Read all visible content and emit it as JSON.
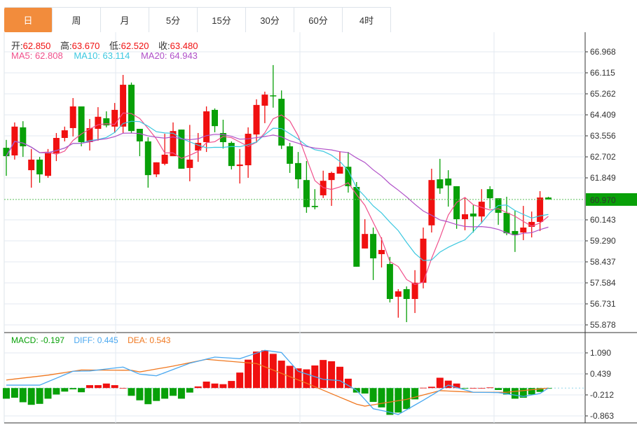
{
  "tabs": [
    {
      "label": "日",
      "active": true
    },
    {
      "label": "周"
    },
    {
      "label": "月"
    },
    {
      "label": "5分"
    },
    {
      "label": "15分"
    },
    {
      "label": "30分"
    },
    {
      "label": "60分"
    },
    {
      "label": "4时"
    }
  ],
  "ohlc": {
    "open_label": "开:",
    "open": "62.850",
    "high_label": "高:",
    "high": "63.670",
    "low_label": "低:",
    "low": "62.520",
    "close_label": "收:",
    "close": "63.480"
  },
  "ma": {
    "ma5": "MA5: 62.808",
    "ma10": "MA10: 63.114",
    "ma20": "MA20: 64.943"
  },
  "macd": {
    "macd": "MACD: -0.197",
    "diff": "DIFF: 0.445",
    "dea": "DEA: 0.543"
  },
  "colors": {
    "up": "#f01010",
    "down": "#08a008",
    "ma5": "#f0508c",
    "ma10": "#3cc8e0",
    "ma20": "#b050c8",
    "diff": "#4aa8f0",
    "dea": "#f07820",
    "accent": "#f28c3c"
  },
  "chart_data": {
    "type": "candlestick",
    "price_ticks": [
      "66.968",
      "66.115",
      "65.262",
      "64.409",
      "63.556",
      "62.702",
      "61.849",
      "60.970",
      "60.143",
      "59.290",
      "58.437",
      "57.584",
      "56.731",
      "55.878"
    ],
    "price_range": [
      55.878,
      66.968
    ],
    "last_price": "60.970",
    "macd_ticks": [
      "1.090",
      "0.439",
      "-0.212",
      "-0.863"
    ],
    "macd_range": [
      -0.863,
      1.09
    ],
    "candles": [
      [
        63.07,
        62.73,
        63.39,
        61.93
      ],
      [
        62.76,
        63.93,
        64.1,
        62.59
      ],
      [
        63.9,
        63.13,
        64.15,
        62.7
      ],
      [
        62.16,
        62.59,
        63.02,
        61.45
      ],
      [
        62.59,
        61.99,
        62.7,
        61.65
      ],
      [
        61.93,
        62.85,
        63.02,
        61.85
      ],
      [
        62.85,
        63.47,
        63.67,
        62.53
      ],
      [
        63.47,
        63.78,
        63.93,
        63.33
      ],
      [
        63.87,
        64.75,
        65.09,
        63.53
      ],
      [
        64.75,
        63.3,
        64.75,
        63.13
      ],
      [
        63.3,
        63.87,
        64.24,
        62.96
      ],
      [
        63.84,
        64.33,
        64.72,
        63.36
      ],
      [
        64.27,
        63.98,
        64.55,
        63.9
      ],
      [
        63.93,
        64.61,
        64.89,
        63.67
      ],
      [
        63.93,
        65.63,
        66.03,
        63.67
      ],
      [
        65.63,
        63.75,
        65.72,
        63.67
      ],
      [
        63.84,
        63.33,
        63.84,
        62.73
      ],
      [
        63.33,
        61.96,
        63.5,
        61.45
      ],
      [
        61.99,
        62.48,
        62.48,
        61.88
      ],
      [
        62.42,
        62.79,
        63.64,
        62.36
      ],
      [
        62.73,
        63.75,
        64.1,
        62.73
      ],
      [
        63.81,
        62.22,
        63.81,
        62.22
      ],
      [
        62.25,
        62.59,
        64.0,
        61.71
      ],
      [
        62.96,
        63.27,
        63.67,
        62.5
      ],
      [
        63.3,
        64.55,
        64.75,
        62.9
      ],
      [
        64.61,
        63.95,
        64.67,
        63.7
      ],
      [
        63.67,
        63.3,
        64.21,
        63.04
      ],
      [
        63.27,
        62.33,
        63.33,
        62.19
      ],
      [
        62.33,
        62.39,
        63.02,
        61.62
      ],
      [
        62.36,
        63.64,
        63.9,
        61.85
      ],
      [
        63.61,
        64.81,
        65.04,
        63.27
      ],
      [
        64.78,
        65.23,
        65.35,
        64.07
      ],
      [
        65.2,
        65.17,
        66.43,
        64.7
      ],
      [
        65.06,
        63.16,
        65.4,
        63.02
      ],
      [
        63.13,
        62.42,
        63.27,
        62.05
      ],
      [
        62.45,
        61.79,
        62.9,
        61.42
      ],
      [
        61.76,
        60.66,
        62.53,
        60.43
      ],
      [
        60.71,
        60.66,
        61.39,
        60.57
      ],
      [
        61.14,
        61.73,
        62.14,
        61.03
      ],
      [
        61.76,
        62.05,
        62.1,
        60.71
      ],
      [
        62.02,
        62.3,
        62.93,
        62.02
      ],
      [
        62.3,
        61.51,
        62.9,
        61.25
      ],
      [
        61.48,
        58.24,
        61.68,
        58.24
      ],
      [
        58.98,
        59.57,
        60.17,
        58.98
      ],
      [
        59.57,
        58.58,
        59.83,
        57.7
      ],
      [
        58.75,
        58.92,
        59.43,
        58.21
      ],
      [
        58.35,
        56.93,
        58.64,
        56.79
      ],
      [
        57.02,
        57.24,
        57.33,
        56.17
      ],
      [
        57.33,
        56.93,
        57.44,
        55.99
      ],
      [
        56.93,
        57.59,
        58.1,
        56.36
      ],
      [
        57.59,
        59.38,
        59.83,
        57.36
      ],
      [
        59.92,
        61.76,
        62.22,
        59.63
      ],
      [
        61.79,
        61.42,
        62.62,
        61.2
      ],
      [
        61.82,
        61.54,
        62.16,
        60.68
      ],
      [
        61.51,
        60.17,
        61.51,
        59.78
      ],
      [
        60.17,
        60.37,
        61.05,
        59.72
      ],
      [
        60.4,
        60.28,
        60.74,
        59.63
      ],
      [
        60.28,
        60.88,
        61.39,
        60.0
      ],
      [
        61.39,
        61.02,
        61.51,
        60.6
      ],
      [
        61.02,
        60.43,
        61.02,
        59.94
      ],
      [
        60.43,
        59.6,
        61.08,
        59.52
      ],
      [
        59.69,
        59.52,
        60.51,
        58.84
      ],
      [
        59.63,
        59.83,
        60.71,
        59.32
      ],
      [
        59.86,
        60.06,
        60.48,
        59.43
      ],
      [
        60.06,
        61.05,
        61.31,
        59.69
      ],
      [
        61.05,
        60.97,
        61.08,
        60.97
      ]
    ],
    "macd_hist": [
      -0.33,
      -0.3,
      -0.44,
      -0.52,
      -0.49,
      -0.33,
      -0.2,
      -0.11,
      -0.04,
      -0.13,
      0.09,
      0.09,
      0.14,
      0.09,
      0.0,
      -0.24,
      -0.38,
      -0.5,
      -0.4,
      -0.33,
      -0.24,
      -0.33,
      -0.14,
      0.05,
      0.2,
      0.14,
      0.12,
      0.22,
      0.48,
      0.88,
      1.13,
      1.17,
      1.06,
      0.85,
      0.69,
      0.61,
      0.58,
      0.7,
      0.87,
      0.83,
      0.66,
      0.29,
      -0.14,
      -0.17,
      -0.43,
      -0.6,
      -0.83,
      -0.76,
      -0.65,
      -0.35,
      0.01,
      0.04,
      0.32,
      0.23,
      0.14,
      -0.02,
      0.0,
      0.0,
      0.02,
      -0.06,
      -0.2,
      -0.33,
      -0.3,
      -0.2,
      -0.12,
      -0.02
    ],
    "diff_points": [
      [
        0,
        0.09
      ],
      [
        4,
        0.09
      ],
      [
        8,
        0.52
      ],
      [
        10,
        0.53
      ],
      [
        14,
        0.65
      ],
      [
        16,
        0.43
      ],
      [
        18,
        0.38
      ],
      [
        22,
        0.77
      ],
      [
        25,
        0.96
      ],
      [
        28,
        0.91
      ],
      [
        31,
        1.17
      ],
      [
        33,
        1.1
      ],
      [
        35,
        0.52
      ],
      [
        38,
        0.27
      ],
      [
        40,
        0.23
      ],
      [
        42,
        -0.07
      ],
      [
        44,
        -0.64
      ],
      [
        46,
        -0.75
      ],
      [
        47,
        -0.82
      ],
      [
        50,
        -0.38
      ],
      [
        53,
        0.09
      ],
      [
        56,
        -0.13
      ],
      [
        59,
        -0.14
      ],
      [
        62,
        -0.26
      ],
      [
        64,
        -0.17
      ],
      [
        65,
        0.0
      ]
    ],
    "dea_points": [
      [
        0,
        0.25
      ],
      [
        5,
        0.4
      ],
      [
        9,
        0.56
      ],
      [
        15,
        0.55
      ],
      [
        16,
        0.5
      ],
      [
        20,
        0.68
      ],
      [
        24,
        0.89
      ],
      [
        30,
        0.76
      ],
      [
        36,
        0.15
      ],
      [
        42,
        -0.5
      ],
      [
        43,
        -0.56
      ],
      [
        48,
        -0.35
      ],
      [
        52,
        -0.08
      ],
      [
        56,
        -0.13
      ],
      [
        60,
        -0.13
      ],
      [
        65,
        0.0
      ]
    ]
  }
}
